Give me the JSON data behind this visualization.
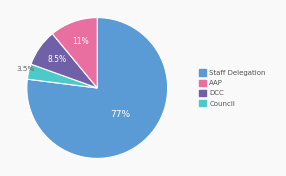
{
  "labels": [
    "Staff Delegation",
    "Council",
    "DCC",
    "AAP"
  ],
  "values": [
    77,
    3.5,
    8.5,
    11
  ],
  "colors": [
    "#5b9bd5",
    "#4ec9c9",
    "#7060a8",
    "#e96fa0"
  ],
  "pct_labels": [
    "77%",
    "3.5%",
    "8.5%",
    "11%"
  ],
  "pct_inside": [
    true,
    false,
    true,
    true
  ],
  "legend_labels": [
    "Staff Delegation",
    "AAP",
    "DCC",
    "Council"
  ],
  "legend_colors": [
    "#5b9bd5",
    "#e96fa0",
    "#7060a8",
    "#4ec9c9"
  ],
  "background_color": "#f9f9f9",
  "startangle": 90,
  "text_color_inside": "#ffffff",
  "text_color_outside": "#666666"
}
